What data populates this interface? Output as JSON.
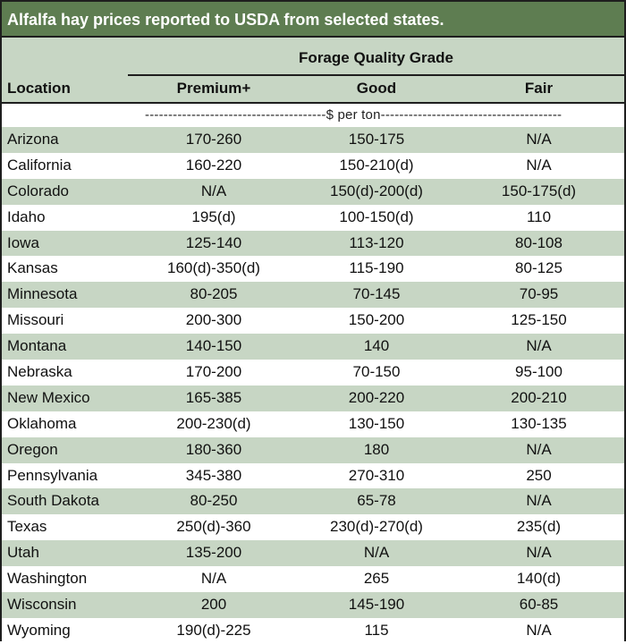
{
  "title": "Alfalfa hay prices reported to USDA from selected states.",
  "header": {
    "group": "Forage Quality Grade",
    "location": "Location",
    "columns": [
      "Premium+",
      "Good",
      "Fair"
    ]
  },
  "units": "---------------------------------------$ per ton---------------------------------------",
  "colors": {
    "title_bg": "#5e7d51",
    "shade": "#c7d6c4",
    "border": "#1e1e1e"
  },
  "rows": [
    {
      "location": "Arizona",
      "premium": "170-260",
      "good": "150-175",
      "fair": "N/A"
    },
    {
      "location": "California",
      "premium": "160-220",
      "good": "150-210(d)",
      "fair": "N/A"
    },
    {
      "location": "Colorado",
      "premium": "N/A",
      "good": "150(d)-200(d)",
      "fair": "150-175(d)"
    },
    {
      "location": "Idaho",
      "premium": "195(d)",
      "good": "100-150(d)",
      "fair": "110"
    },
    {
      "location": "Iowa",
      "premium": "125-140",
      "good": "113-120",
      "fair": "80-108"
    },
    {
      "location": "Kansas",
      "premium": "160(d)-350(d)",
      "good": "115-190",
      "fair": "80-125"
    },
    {
      "location": "Minnesota",
      "premium": "80-205",
      "good": "70-145",
      "fair": "70-95"
    },
    {
      "location": "Missouri",
      "premium": "200-300",
      "good": "150-200",
      "fair": "125-150"
    },
    {
      "location": "Montana",
      "premium": "140-150",
      "good": "140",
      "fair": "N/A"
    },
    {
      "location": "Nebraska",
      "premium": "170-200",
      "good": "70-150",
      "fair": "95-100"
    },
    {
      "location": "New Mexico",
      "premium": "165-385",
      "good": "200-220",
      "fair": "200-210"
    },
    {
      "location": "Oklahoma",
      "premium": "200-230(d)",
      "good": "130-150",
      "fair": "130-135"
    },
    {
      "location": "Oregon",
      "premium": "180-360",
      "good": "180",
      "fair": "N/A"
    },
    {
      "location": "Pennsylvania",
      "premium": "345-380",
      "good": "270-310",
      "fair": "250"
    },
    {
      "location": "South Dakota",
      "premium": "80-250",
      "good": "65-78",
      "fair": "N/A"
    },
    {
      "location": "Texas",
      "premium": "250(d)-360",
      "good": "230(d)-270(d)",
      "fair": "235(d)"
    },
    {
      "location": "Utah",
      "premium": "135-200",
      "good": "N/A",
      "fair": "N/A"
    },
    {
      "location": "Washington",
      "premium": "N/A",
      "good": "265",
      "fair": "140(d)"
    },
    {
      "location": "Wisconsin",
      "premium": "200",
      "good": "145-190",
      "fair": "60-85"
    },
    {
      "location": "Wyoming",
      "premium": "190(d)-225",
      "good": "115",
      "fair": "N/A"
    }
  ]
}
